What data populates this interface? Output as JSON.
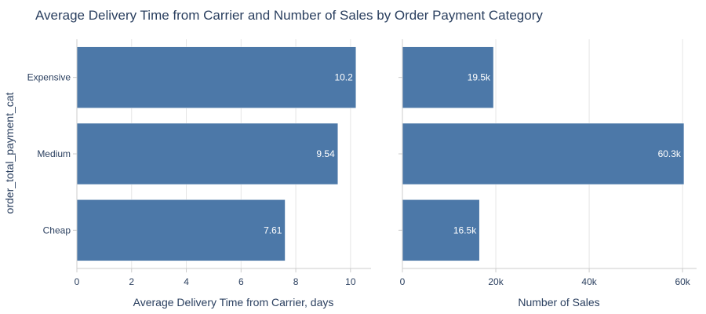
{
  "chart_data": {
    "type": "bar",
    "orientation": "horizontal",
    "title": "Average Delivery Time from Carrier and Number of Sales by Order Payment Category",
    "ylabel": "order_total_payment_cat",
    "categories": [
      "Expensive",
      "Medium",
      "Cheap"
    ],
    "bar_color": "#4c78a8",
    "panels": [
      {
        "xlabel": "Average Delivery Time from Carrier, days",
        "values": [
          10.2,
          9.54,
          7.61
        ],
        "value_labels": [
          "10.2",
          "9.54",
          "7.61"
        ],
        "xlim": [
          0,
          10.75
        ],
        "xticks": [
          0,
          2,
          4,
          6,
          8,
          10
        ],
        "xtick_labels": [
          "0",
          "2",
          "4",
          "6",
          "8",
          "10"
        ]
      },
      {
        "xlabel": "Number of Sales",
        "values": [
          19500,
          60300,
          16500
        ],
        "value_labels": [
          "19.5k",
          "60.3k",
          "16.5k"
        ],
        "xlim": [
          0,
          63000
        ],
        "xticks": [
          0,
          20000,
          40000,
          60000
        ],
        "xtick_labels": [
          "0",
          "20k",
          "40k",
          "60k"
        ]
      }
    ]
  }
}
